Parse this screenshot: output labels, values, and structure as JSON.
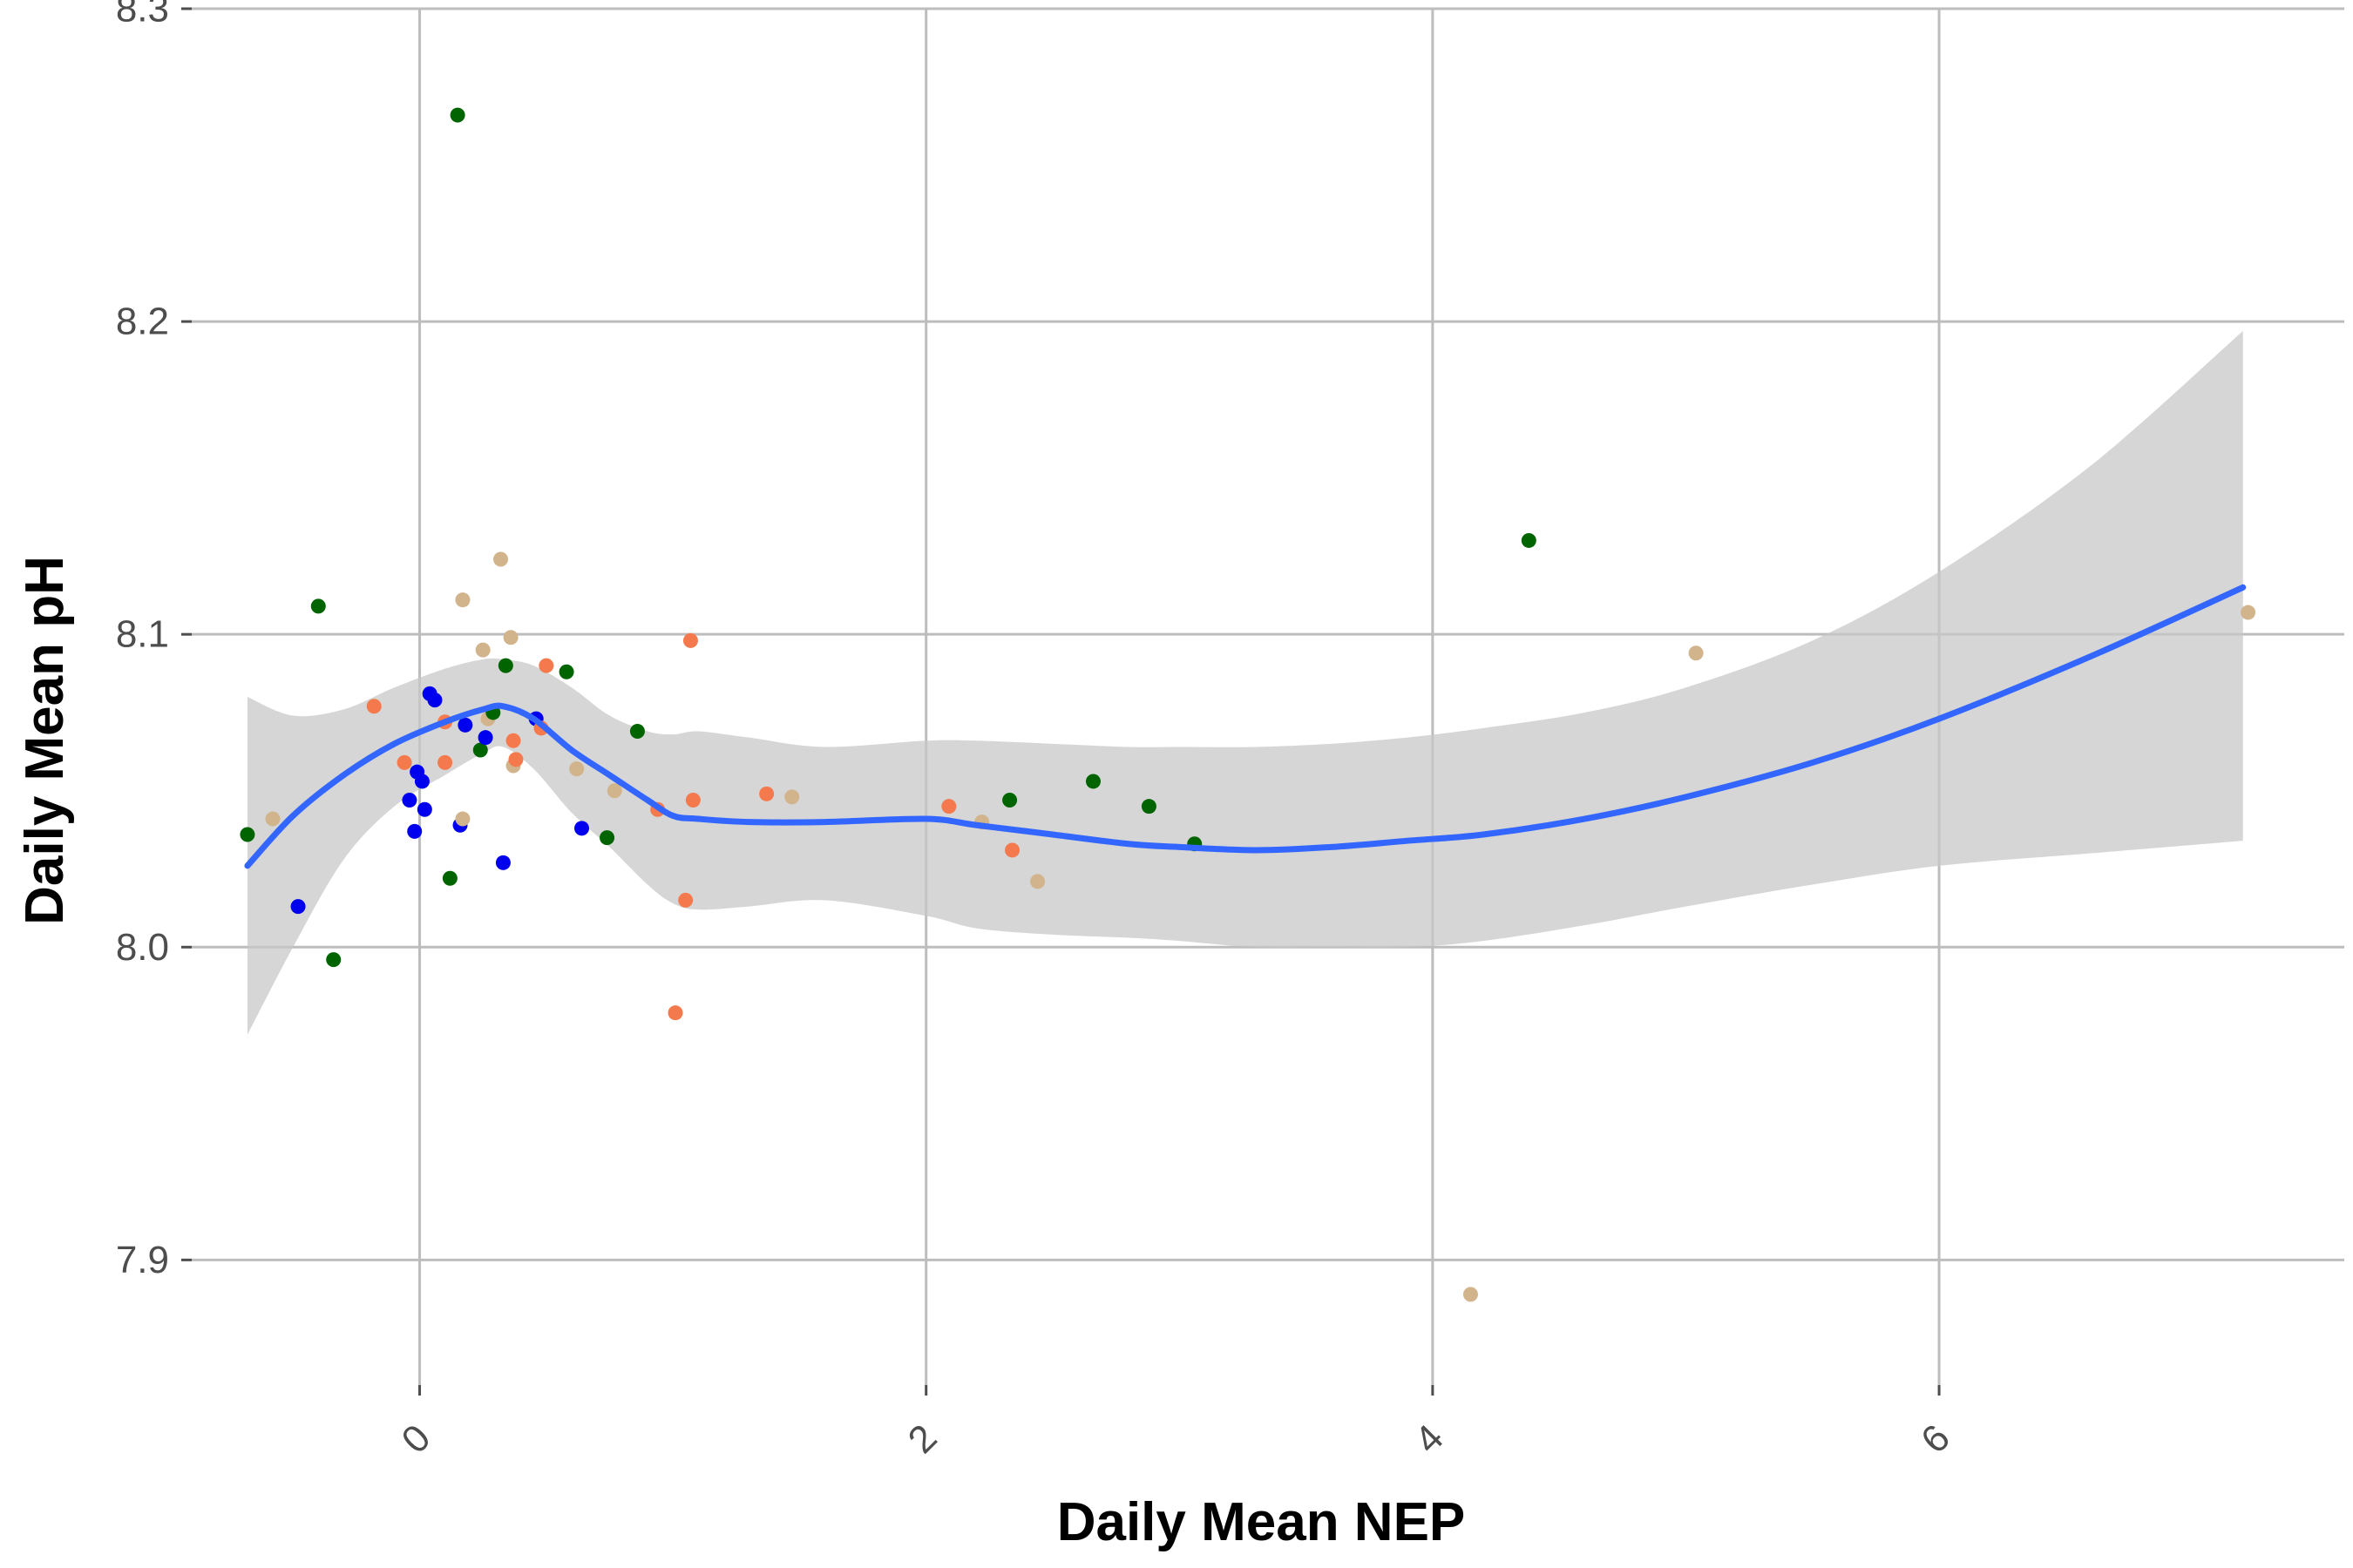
{
  "chart_data": {
    "type": "scatter",
    "title": "",
    "xlabel": "Daily Mean NEP",
    "ylabel": "Daily Mean pH",
    "xlim": [
      -0.9,
      7.6
    ],
    "ylim": [
      7.86,
      8.3
    ],
    "x_ticks": [
      0,
      2,
      4,
      6
    ],
    "x_tick_labels": [
      "0",
      "2",
      "4",
      "6"
    ],
    "y_ticks": [
      7.9,
      8.0,
      8.1,
      8.2,
      8.3
    ],
    "y_tick_labels": [
      "7.9",
      "8.0",
      "8.1",
      "8.2",
      "8.3"
    ],
    "grid": true,
    "legend": "none",
    "colors": {
      "dark_green": "#006400",
      "orange": "#f47a4e",
      "tan": "#d2b48c",
      "blue": "#0000ee",
      "smooth_line": "#3366ff",
      "confidence_band": "#c8c8c8"
    },
    "points": [
      {
        "x": -0.68,
        "y": 8.036,
        "color": "#006400"
      },
      {
        "x": -0.58,
        "y": 8.041,
        "color": "#d2b48c"
      },
      {
        "x": -0.48,
        "y": 8.013,
        "color": "#0000ee"
      },
      {
        "x": -0.4,
        "y": 8.109,
        "color": "#006400"
      },
      {
        "x": -0.34,
        "y": 7.996,
        "color": "#006400"
      },
      {
        "x": -0.18,
        "y": 8.077,
        "color": "#f47a4e"
      },
      {
        "x": -0.06,
        "y": 8.059,
        "color": "#f47a4e"
      },
      {
        "x": -0.04,
        "y": 8.047,
        "color": "#0000ee"
      },
      {
        "x": -0.02,
        "y": 8.037,
        "color": "#0000ee"
      },
      {
        "x": -0.01,
        "y": 8.056,
        "color": "#0000ee"
      },
      {
        "x": 0.01,
        "y": 8.053,
        "color": "#0000ee"
      },
      {
        "x": 0.02,
        "y": 8.044,
        "color": "#0000ee"
      },
      {
        "x": 0.04,
        "y": 8.081,
        "color": "#0000ee"
      },
      {
        "x": 0.06,
        "y": 8.079,
        "color": "#0000ee"
      },
      {
        "x": 0.1,
        "y": 8.072,
        "color": "#f47a4e"
      },
      {
        "x": 0.1,
        "y": 8.059,
        "color": "#f47a4e"
      },
      {
        "x": 0.12,
        "y": 8.022,
        "color": "#006400"
      },
      {
        "x": 0.15,
        "y": 8.266,
        "color": "#006400"
      },
      {
        "x": 0.16,
        "y": 8.039,
        "color": "#0000ee"
      },
      {
        "x": 0.17,
        "y": 8.041,
        "color": "#d2b48c"
      },
      {
        "x": 0.17,
        "y": 8.111,
        "color": "#d2b48c"
      },
      {
        "x": 0.18,
        "y": 8.071,
        "color": "#0000ee"
      },
      {
        "x": 0.24,
        "y": 8.063,
        "color": "#006400"
      },
      {
        "x": 0.25,
        "y": 8.095,
        "color": "#d2b48c"
      },
      {
        "x": 0.26,
        "y": 8.067,
        "color": "#0000ee"
      },
      {
        "x": 0.27,
        "y": 8.073,
        "color": "#d2b48c"
      },
      {
        "x": 0.29,
        "y": 8.075,
        "color": "#006400"
      },
      {
        "x": 0.32,
        "y": 8.124,
        "color": "#d2b48c"
      },
      {
        "x": 0.33,
        "y": 8.027,
        "color": "#0000ee"
      },
      {
        "x": 0.34,
        "y": 8.09,
        "color": "#006400"
      },
      {
        "x": 0.36,
        "y": 8.099,
        "color": "#d2b48c"
      },
      {
        "x": 0.37,
        "y": 8.066,
        "color": "#f47a4e"
      },
      {
        "x": 0.37,
        "y": 8.058,
        "color": "#d2b48c"
      },
      {
        "x": 0.38,
        "y": 8.06,
        "color": "#f47a4e"
      },
      {
        "x": 0.46,
        "y": 8.073,
        "color": "#0000ee"
      },
      {
        "x": 0.48,
        "y": 8.07,
        "color": "#f47a4e"
      },
      {
        "x": 0.5,
        "y": 8.09,
        "color": "#f47a4e"
      },
      {
        "x": 0.58,
        "y": 8.088,
        "color": "#006400"
      },
      {
        "x": 0.62,
        "y": 8.057,
        "color": "#d2b48c"
      },
      {
        "x": 0.64,
        "y": 8.038,
        "color": "#0000ee"
      },
      {
        "x": 0.74,
        "y": 8.035,
        "color": "#006400"
      },
      {
        "x": 0.77,
        "y": 8.05,
        "color": "#d2b48c"
      },
      {
        "x": 0.86,
        "y": 8.069,
        "color": "#006400"
      },
      {
        "x": 0.94,
        "y": 8.044,
        "color": "#f47a4e"
      },
      {
        "x": 1.01,
        "y": 7.979,
        "color": "#f47a4e"
      },
      {
        "x": 1.05,
        "y": 8.015,
        "color": "#f47a4e"
      },
      {
        "x": 1.07,
        "y": 8.098,
        "color": "#f47a4e"
      },
      {
        "x": 1.08,
        "y": 8.047,
        "color": "#f47a4e"
      },
      {
        "x": 1.37,
        "y": 8.049,
        "color": "#f47a4e"
      },
      {
        "x": 1.47,
        "y": 8.048,
        "color": "#d2b48c"
      },
      {
        "x": 2.09,
        "y": 8.045,
        "color": "#f47a4e"
      },
      {
        "x": 2.22,
        "y": 8.04,
        "color": "#d2b48c"
      },
      {
        "x": 2.33,
        "y": 8.047,
        "color": "#006400"
      },
      {
        "x": 2.34,
        "y": 8.031,
        "color": "#f47a4e"
      },
      {
        "x": 2.44,
        "y": 8.021,
        "color": "#d2b48c"
      },
      {
        "x": 2.66,
        "y": 8.053,
        "color": "#006400"
      },
      {
        "x": 2.88,
        "y": 8.045,
        "color": "#006400"
      },
      {
        "x": 3.06,
        "y": 8.033,
        "color": "#006400"
      },
      {
        "x": 4.15,
        "y": 7.889,
        "color": "#d2b48c"
      },
      {
        "x": 4.38,
        "y": 8.13,
        "color": "#006400"
      },
      {
        "x": 5.04,
        "y": 8.094,
        "color": "#d2b48c"
      },
      {
        "x": 7.22,
        "y": 8.107,
        "color": "#d2b48c"
      }
    ],
    "smooth_fit": {
      "x": [
        -0.68,
        -0.5,
        -0.3,
        -0.1,
        0.1,
        0.25,
        0.33,
        0.45,
        0.6,
        0.75,
        0.9,
        1.0,
        1.1,
        1.3,
        1.6,
        2.0,
        2.2,
        2.5,
        2.8,
        3.0,
        3.3,
        3.6,
        3.9,
        4.2,
        4.6,
        5.0,
        5.5,
        6.0,
        6.6,
        7.2
      ],
      "y": [
        8.026,
        8.042,
        8.055,
        8.065,
        8.072,
        8.076,
        8.077,
        8.073,
        8.063,
        8.055,
        8.047,
        8.042,
        8.041,
        8.04,
        8.04,
        8.041,
        8.039,
        8.036,
        8.033,
        8.032,
        8.031,
        8.032,
        8.034,
        8.036,
        8.041,
        8.048,
        8.059,
        8.073,
        8.093,
        8.115
      ],
      "lower": [
        7.972,
        8.0,
        8.028,
        8.045,
        8.055,
        8.062,
        8.064,
        8.057,
        8.043,
        8.032,
        8.02,
        8.014,
        8.012,
        8.013,
        8.015,
        8.01,
        8.006,
        8.004,
        8.003,
        8.002,
        8.0,
        8.0,
        8.0,
        8.002,
        8.007,
        8.013,
        8.02,
        8.026,
        8.03,
        8.034
      ],
      "upper": [
        8.08,
        8.074,
        8.076,
        8.083,
        8.089,
        8.092,
        8.092,
        8.09,
        8.083,
        8.074,
        8.069,
        8.068,
        8.069,
        8.067,
        8.064,
        8.066,
        8.066,
        8.065,
        8.064,
        8.064,
        8.064,
        8.065,
        8.067,
        8.07,
        8.075,
        8.083,
        8.098,
        8.12,
        8.154,
        8.197
      ]
    }
  }
}
